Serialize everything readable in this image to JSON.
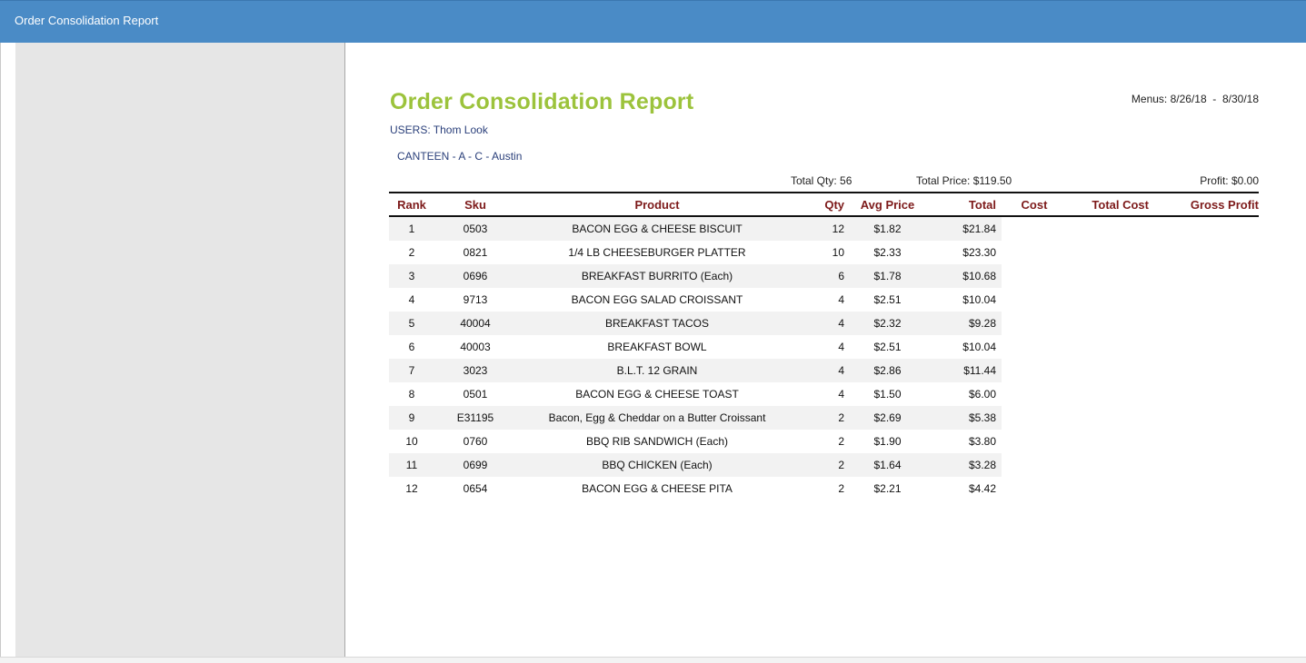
{
  "window": {
    "title": "Order Consolidation Report"
  },
  "report": {
    "title": "Order Consolidation Report",
    "menus": "Menus: 8/26/18  -  8/30/18",
    "users": "USERS: Thom Look",
    "location": "CANTEEN - A - C - Austin",
    "summary": {
      "total_qty": "Total Qty: 56",
      "total_price": "Total Price: $119.50",
      "profit": "Profit: $0.00"
    },
    "columns": {
      "rank": "Rank",
      "sku": "Sku",
      "product": "Product",
      "qty": "Qty",
      "avg_price": "Avg Price",
      "total": "Total",
      "cost": "Cost",
      "total_cost": "Total Cost",
      "gross_profit": "Gross Profit"
    },
    "rows": [
      {
        "rank": "1",
        "sku": "0503",
        "product": "BACON EGG & CHEESE BISCUIT",
        "qty": "12",
        "avg_price": "$1.82",
        "total": "$21.84"
      },
      {
        "rank": "2",
        "sku": "0821",
        "product": "1/4 LB CHEESEBURGER PLATTER",
        "qty": "10",
        "avg_price": "$2.33",
        "total": "$23.30"
      },
      {
        "rank": "3",
        "sku": "0696",
        "product": "BREAKFAST BURRITO (Each)",
        "qty": "6",
        "avg_price": "$1.78",
        "total": "$10.68"
      },
      {
        "rank": "4",
        "sku": "9713",
        "product": "BACON  EGG SALAD CROISSANT",
        "qty": "4",
        "avg_price": "$2.51",
        "total": "$10.04"
      },
      {
        "rank": "5",
        "sku": "40004",
        "product": "BREAKFAST TACOS",
        "qty": "4",
        "avg_price": "$2.32",
        "total": "$9.28"
      },
      {
        "rank": "6",
        "sku": "40003",
        "product": "BREAKFAST BOWL",
        "qty": "4",
        "avg_price": "$2.51",
        "total": "$10.04"
      },
      {
        "rank": "7",
        "sku": "3023",
        "product": "B.L.T. 12 GRAIN",
        "qty": "4",
        "avg_price": "$2.86",
        "total": "$11.44"
      },
      {
        "rank": "8",
        "sku": "0501",
        "product": "BACON EGG & CHEESE TOAST",
        "qty": "4",
        "avg_price": "$1.50",
        "total": "$6.00"
      },
      {
        "rank": "9",
        "sku": "E31195",
        "product": "Bacon, Egg & Cheddar on a Butter Croissant",
        "qty": "2",
        "avg_price": "$2.69",
        "total": "$5.38"
      },
      {
        "rank": "10",
        "sku": "0760",
        "product": "BBQ RIB SANDWICH (Each)",
        "qty": "2",
        "avg_price": "$1.90",
        "total": "$3.80"
      },
      {
        "rank": "11",
        "sku": "0699",
        "product": "BBQ CHICKEN (Each)",
        "qty": "2",
        "avg_price": "$1.64",
        "total": "$3.28"
      },
      {
        "rank": "12",
        "sku": "0654",
        "product": "BACON EGG & CHEESE PITA",
        "qty": "2",
        "avg_price": "$2.21",
        "total": "$4.42"
      }
    ]
  }
}
